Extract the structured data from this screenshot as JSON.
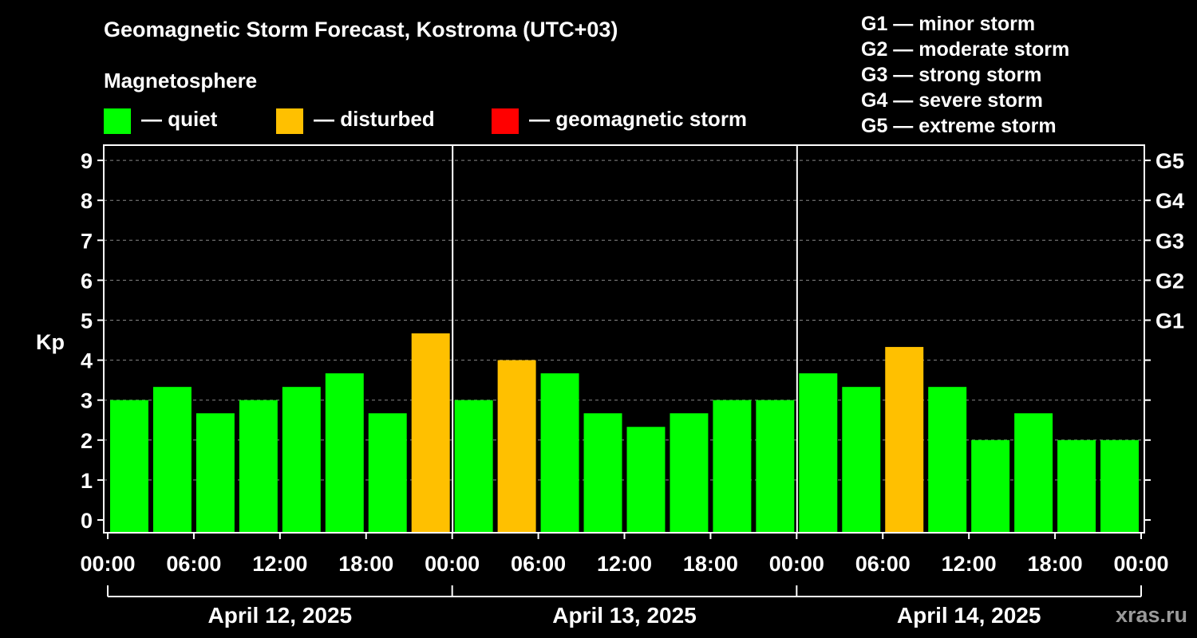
{
  "title": "Geomagnetic Storm Forecast, Kostroma (UTC+03)",
  "magnetosphere_label": "Magnetosphere",
  "legend": [
    {
      "label": "— quiet",
      "color": "#00ff00"
    },
    {
      "label": "— disturbed",
      "color": "#ffc000"
    },
    {
      "label": "— geomagnetic storm",
      "color": "#ff0000"
    }
  ],
  "g_levels": [
    "G1 — minor storm",
    "G2 — moderate storm",
    "G3 — strong storm",
    "G4 — severe storm",
    "G5 — extreme storm"
  ],
  "watermark": "xras.ru",
  "chart_data": {
    "type": "bar",
    "ylabel": "Kp",
    "ylim": [
      0,
      9
    ],
    "y_ticks": [
      0,
      1,
      2,
      3,
      4,
      5,
      6,
      7,
      8,
      9
    ],
    "right_ticks": [
      {
        "value": 5,
        "label": "G1"
      },
      {
        "value": 6,
        "label": "G2"
      },
      {
        "value": 7,
        "label": "G3"
      },
      {
        "value": 8,
        "label": "G4"
      },
      {
        "value": 9,
        "label": "G5"
      }
    ],
    "grid": true,
    "x_tick_labels": [
      "00:00",
      "06:00",
      "12:00",
      "18:00",
      "00:00",
      "06:00",
      "12:00",
      "18:00",
      "00:00",
      "06:00",
      "12:00",
      "18:00",
      "00:00"
    ],
    "days": [
      "April 12, 2025",
      "April 13, 2025",
      "April 14, 2025"
    ],
    "values": [
      3.0,
      3.33,
      2.67,
      3.0,
      3.33,
      3.67,
      2.67,
      4.67,
      3.0,
      4.0,
      3.67,
      2.67,
      2.33,
      2.67,
      3.0,
      3.0,
      3.67,
      3.33,
      4.33,
      3.33,
      2.0,
      2.67,
      2.0,
      2.0
    ],
    "status": [
      "quiet",
      "quiet",
      "quiet",
      "quiet",
      "quiet",
      "quiet",
      "quiet",
      "disturbed",
      "quiet",
      "disturbed",
      "quiet",
      "quiet",
      "quiet",
      "quiet",
      "quiet",
      "quiet",
      "quiet",
      "quiet",
      "disturbed",
      "quiet",
      "quiet",
      "quiet",
      "quiet",
      "quiet"
    ],
    "colors": {
      "quiet": "#00ff00",
      "disturbed": "#ffc000",
      "storm": "#ff0000"
    }
  }
}
